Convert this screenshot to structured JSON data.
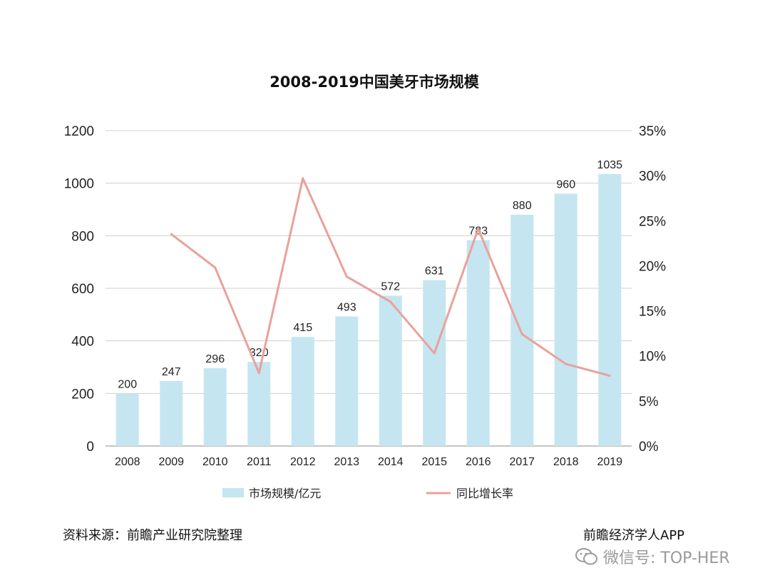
{
  "chart_data": {
    "type": "bar",
    "title": "2008-2019中国美牙市场规模",
    "categories": [
      "2008",
      "2009",
      "2010",
      "2011",
      "2012",
      "2013",
      "2014",
      "2015",
      "2016",
      "2017",
      "2018",
      "2019"
    ],
    "series": [
      {
        "name": "市场规模/亿元",
        "kind": "bar",
        "axis": "left",
        "values": [
          200,
          247,
          296,
          320,
          415,
          493,
          572,
          631,
          783,
          880,
          960,
          1035
        ],
        "color": "#c5e6f0"
      },
      {
        "name": "同比增长率",
        "kind": "line",
        "axis": "right",
        "values": [
          null,
          23.5,
          19.8,
          8.1,
          29.7,
          18.8,
          16.0,
          10.3,
          24.1,
          12.4,
          9.1,
          7.8
        ],
        "color": "#e9a19c"
      }
    ],
    "ylim_left": [
      0,
      1200
    ],
    "yticks_left": [
      "0",
      "200",
      "400",
      "600",
      "800",
      "1000",
      "1200"
    ],
    "ylim_right": [
      0,
      35
    ],
    "yticks_right": [
      "0%",
      "5%",
      "10%",
      "15%",
      "20%",
      "25%",
      "30%",
      "35%"
    ],
    "grid": true,
    "legend": "bottom"
  },
  "footer": {
    "source": "资料来源：前瞻产业研究院整理",
    "publisher": "前瞻经济学人APP"
  },
  "watermark": {
    "text": "微信号: TOP-HER",
    "icon": "wechat-icon"
  }
}
